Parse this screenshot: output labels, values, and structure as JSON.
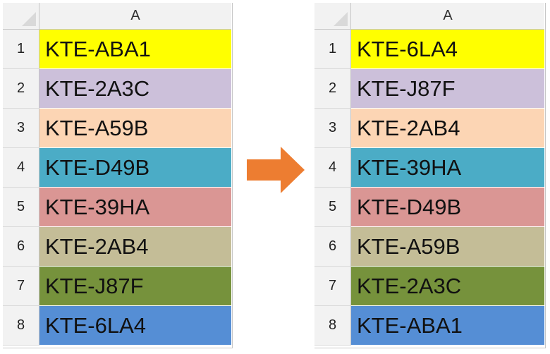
{
  "left_sheet": {
    "column_header": "A",
    "rows": [
      {
        "num": "1",
        "value": "KTE-ABA1",
        "fill": "#ffff00"
      },
      {
        "num": "2",
        "value": "KTE-2A3C",
        "fill": "#ccc0da"
      },
      {
        "num": "3",
        "value": "KTE-A59B",
        "fill": "#fcd5b4"
      },
      {
        "num": "4",
        "value": "KTE-D49B",
        "fill": "#4bacc6"
      },
      {
        "num": "5",
        "value": "KTE-39HA",
        "fill": "#da9694"
      },
      {
        "num": "6",
        "value": "KTE-2AB4",
        "fill": "#c4bd97"
      },
      {
        "num": "7",
        "value": "KTE-J87F",
        "fill": "#76923c"
      },
      {
        "num": "8",
        "value": "KTE-6LA4",
        "fill": "#558ed5"
      }
    ]
  },
  "right_sheet": {
    "column_header": "A",
    "rows": [
      {
        "num": "1",
        "value": "KTE-6LA4",
        "fill": "#ffff00"
      },
      {
        "num": "2",
        "value": "KTE-J87F",
        "fill": "#ccc0da"
      },
      {
        "num": "3",
        "value": "KTE-2AB4",
        "fill": "#fcd5b4"
      },
      {
        "num": "4",
        "value": "KTE-39HA",
        "fill": "#4bacc6"
      },
      {
        "num": "5",
        "value": "KTE-D49B",
        "fill": "#da9694"
      },
      {
        "num": "6",
        "value": "KTE-A59B",
        "fill": "#c4bd97"
      },
      {
        "num": "7",
        "value": "KTE-2A3C",
        "fill": "#76923c"
      },
      {
        "num": "8",
        "value": "KTE-ABA1",
        "fill": "#558ed5"
      }
    ]
  },
  "arrow": {
    "icon": "right-arrow-icon",
    "color": "#ed7d31"
  }
}
